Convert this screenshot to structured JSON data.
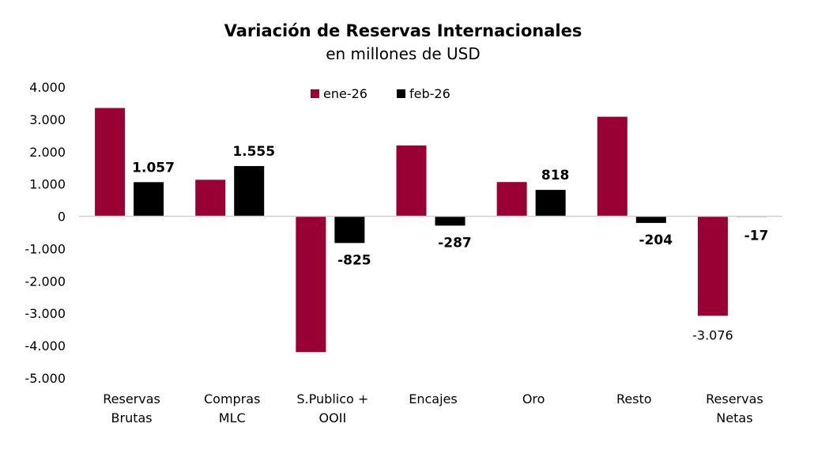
{
  "chart_data": {
    "type": "bar",
    "title": "Variación de Reservas Internacionales",
    "subtitle": "en millones de USD",
    "xlabel": "",
    "ylabel": "",
    "ylim": [
      -5000,
      4000
    ],
    "yticks": [
      4000,
      3000,
      2000,
      1000,
      0,
      -1000,
      -2000,
      -3000,
      -4000,
      -5000
    ],
    "ytick_labels": [
      "4.000",
      "3.000",
      "2.000",
      "1.000",
      "0",
      "-1.000",
      "-2.000",
      "-3.000",
      "-4.000",
      "-5.000"
    ],
    "grid": false,
    "legend_position": "top-center",
    "categories": [
      [
        "Reservas",
        "Brutas"
      ],
      [
        "Compras",
        "MLC"
      ],
      [
        "S.Publico +",
        "OOII"
      ],
      [
        "Encajes"
      ],
      [
        "Oro"
      ],
      [
        "Resto"
      ],
      [
        "Reservas",
        "Netas"
      ]
    ],
    "series": [
      {
        "name": "ene-26",
        "color": "#990033",
        "values": [
          3350,
          1130,
          -4200,
          2190,
          1060,
          3080,
          -3076
        ],
        "data_labels": [
          null,
          null,
          null,
          null,
          null,
          null,
          "-3.076"
        ]
      },
      {
        "name": "feb-26",
        "color": "#000000",
        "values": [
          1057,
          1555,
          -825,
          -287,
          818,
          -204,
          -17
        ],
        "data_labels": [
          "1.057",
          "1.555",
          "-825",
          "-287",
          "818",
          "-204",
          "-17"
        ]
      }
    ]
  }
}
